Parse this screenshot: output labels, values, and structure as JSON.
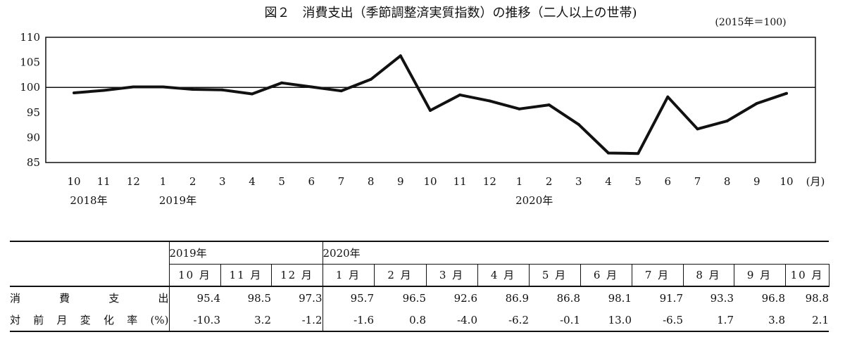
{
  "title": "図２　消費支出（季節調整済実質指数）の推移（二人以上の世帯)",
  "unit_note": "(2015年＝100)",
  "month_unit": "(月)",
  "chart_data": {
    "type": "line",
    "x": [
      "10",
      "11",
      "12",
      "1",
      "2",
      "3",
      "4",
      "5",
      "6",
      "7",
      "8",
      "9",
      "10",
      "11",
      "12",
      "1",
      "2",
      "3",
      "4",
      "5",
      "6",
      "7",
      "8",
      "9",
      "10"
    ],
    "year_labels": [
      {
        "index": 0,
        "label": "2018年"
      },
      {
        "index": 3,
        "label": "2019年"
      },
      {
        "index": 16,
        "label": "2020年"
      }
    ],
    "series": [
      {
        "values": [
          98.9,
          99.4,
          100.1,
          100.1,
          99.6,
          99.5,
          98.7,
          100.9,
          100.1,
          99.3,
          101.6,
          106.3,
          95.4,
          98.5,
          97.3,
          95.7,
          96.5,
          92.6,
          86.9,
          86.8,
          98.1,
          91.7,
          93.3,
          96.8,
          98.8
        ]
      }
    ],
    "reference_line": 100,
    "ylim": [
      85,
      110
    ],
    "yticks": [
      85,
      90,
      95,
      100,
      105,
      110
    ],
    "grid": false,
    "line_color": "#111111"
  },
  "table": {
    "years": [
      "2019年",
      "2020年"
    ],
    "months": [
      "10 月",
      "11 月",
      "12 月",
      "1 月",
      "2 月",
      "3 月",
      "4 月",
      "5 月",
      "6 月",
      "7 月",
      "8 月",
      "9 月",
      "10 月"
    ],
    "rows": [
      {
        "label": "消　費　支　出",
        "values": [
          "95.4",
          "98.5",
          "97.3",
          "95.7",
          "96.5",
          "92.6",
          "86.9",
          "86.8",
          "98.1",
          "91.7",
          "93.3",
          "96.8",
          "98.8"
        ]
      },
      {
        "label": "対前月変化率(%)",
        "values": [
          "-10.3",
          "3.2",
          "-1.2",
          "-1.6",
          "0.8",
          "-4.0",
          "-6.2",
          "-0.1",
          "13.0",
          "-6.5",
          "1.7",
          "3.8",
          "2.1"
        ]
      }
    ]
  }
}
